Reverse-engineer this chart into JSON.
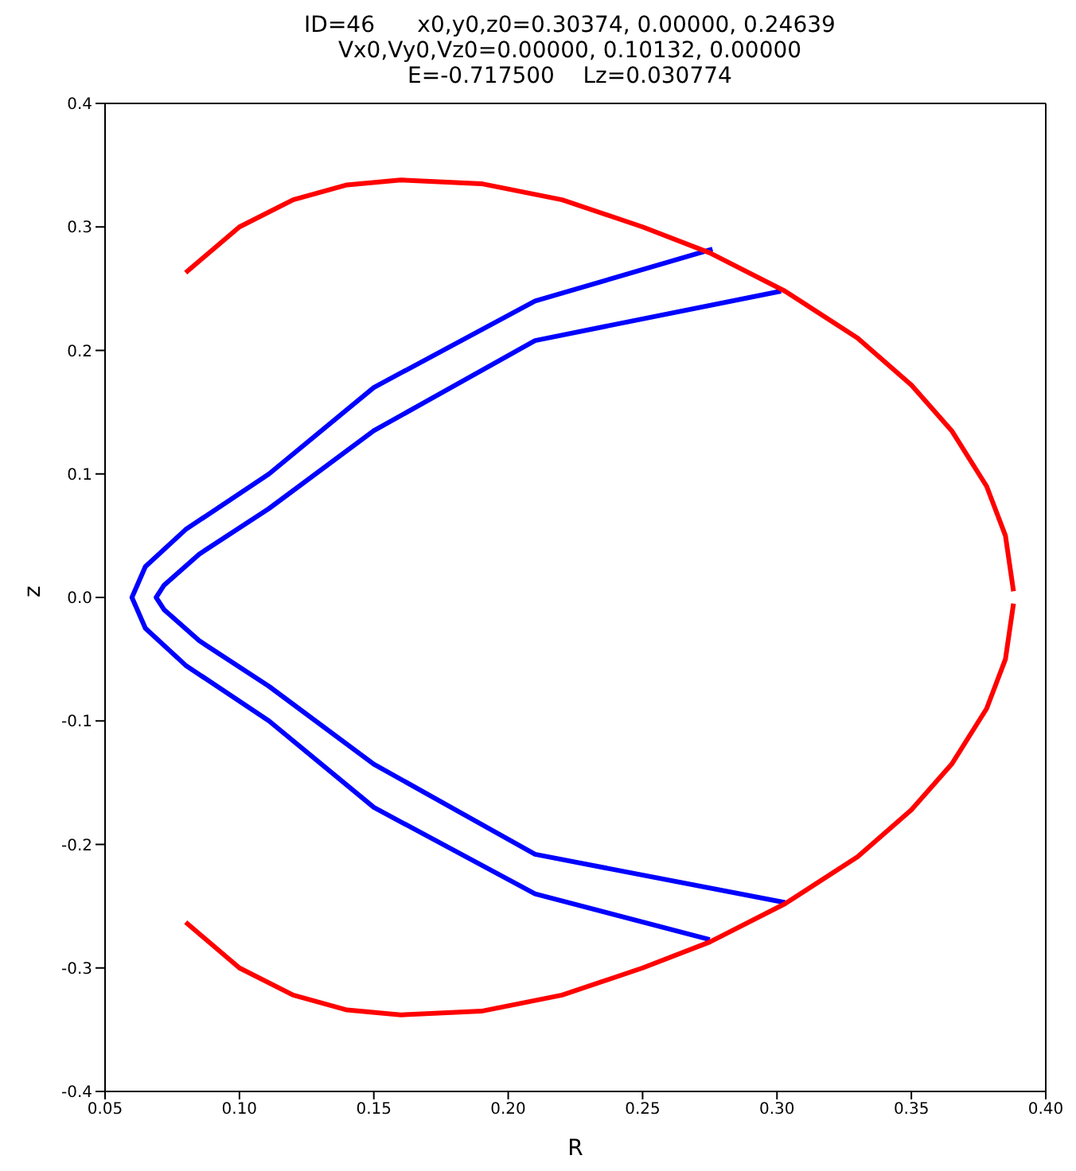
{
  "chart_data": {
    "type": "line",
    "title": "ID=46      x0,y0,z0=0.30374, 0.00000, 0.24639\nVx0,Vy0,Vz0=0.00000, 0.10132, 0.00000\nE=-0.717500    Lz=0.030774",
    "xlabel": "R",
    "ylabel": "z",
    "xlim": [
      0.05,
      0.4
    ],
    "ylim": [
      -0.4,
      0.4
    ],
    "xticks": [
      {
        "value": 0.05,
        "label": "0.05"
      },
      {
        "value": 0.1,
        "label": "0.10"
      },
      {
        "value": 0.15,
        "label": "0.15"
      },
      {
        "value": 0.2,
        "label": "0.20"
      },
      {
        "value": 0.25,
        "label": "0.25"
      },
      {
        "value": 0.3,
        "label": "0.30"
      },
      {
        "value": 0.35,
        "label": "0.35"
      },
      {
        "value": 0.4,
        "label": "0.40"
      }
    ],
    "yticks": [
      -0.4,
      -0.3,
      -0.2,
      -0.1,
      {
        "value": 0,
        "label": "0.0"
      },
      0.1,
      0.2,
      0.3,
      0.4
    ],
    "grid": false,
    "legend": false,
    "marker": "none",
    "line_style": "solid",
    "series": [
      {
        "color": "#0000ff",
        "x": [
          0.276,
          0.21,
          0.15,
          0.111,
          0.08,
          0.065,
          0.06,
          0.065,
          0.08,
          0.111,
          0.15,
          0.21,
          0.275
        ],
        "values": [
          0.282,
          0.24,
          0.17,
          0.1,
          0.055,
          0.025,
          0,
          -0.025,
          -0.055,
          -0.1,
          -0.17,
          -0.24,
          -0.277
        ]
      },
      {
        "color": "#0000ff",
        "x": [
          0.3015,
          0.21,
          0.15,
          0.111,
          0.085,
          0.072,
          0.069,
          0.072,
          0.085,
          0.111,
          0.15,
          0.21,
          0.303
        ],
        "values": [
          0.248,
          0.208,
          0.135,
          0.072,
          0.035,
          0.01,
          0,
          -0.01,
          -0.035,
          -0.072,
          -0.135,
          -0.208,
          -0.247
        ]
      },
      {
        "color": "#ff0000",
        "x": [
          0.08,
          0.1,
          0.12,
          0.14,
          0.16,
          0.19,
          0.22,
          0.25,
          0.275,
          0.303,
          0.33,
          0.35,
          0.365,
          0.378,
          0.385,
          0.388
        ],
        "values": [
          0.263,
          0.3,
          0.322,
          0.334,
          0.338,
          0.335,
          0.322,
          0.3,
          0.279,
          0.248,
          0.21,
          0.172,
          0.135,
          0.09,
          0.05,
          0.005
        ]
      },
      {
        "color": "#ff0000",
        "x": [
          0.388,
          0.385,
          0.378,
          0.365,
          0.35,
          0.33,
          0.303,
          0.275,
          0.25,
          0.22,
          0.19,
          0.16,
          0.14,
          0.12,
          0.1,
          0.08
        ],
        "values": [
          -0.005,
          -0.05,
          -0.09,
          -0.135,
          -0.172,
          -0.21,
          -0.248,
          -0.279,
          -0.3,
          -0.322,
          -0.335,
          -0.338,
          -0.334,
          -0.322,
          -0.3,
          -0.263
        ]
      }
    ]
  }
}
